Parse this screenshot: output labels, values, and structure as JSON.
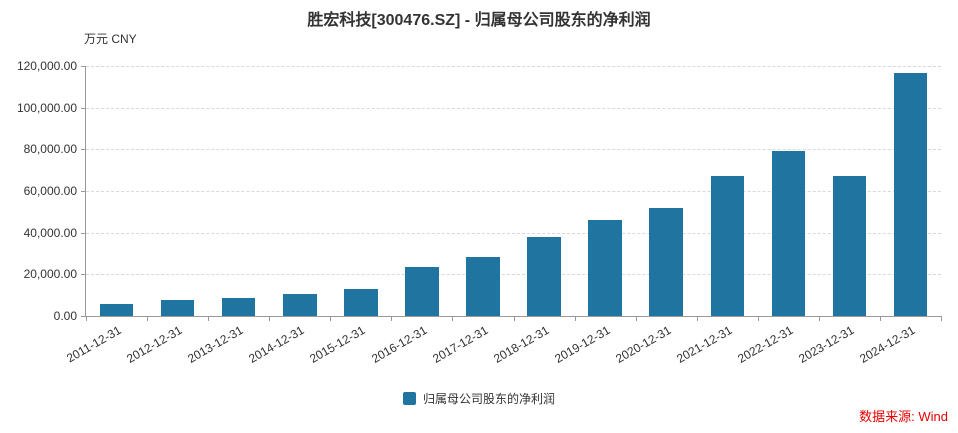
{
  "title": "胜宏科技[300476.SZ] - 归属母公司股东的净利润",
  "unit_label": "万元  CNY",
  "legend": "归属母公司股东的净利润",
  "source": "数据来源: Wind",
  "colors": {
    "bar": "#1f759f",
    "source_text": "#e60000",
    "axis": "#999999",
    "gridline": "#d9d9d9",
    "text": "#333333"
  },
  "chart_data": {
    "type": "bar",
    "title": "胜宏科技[300476.SZ] - 归属母公司股东的净利润",
    "ylabel": "万元 CNY",
    "xlabel": "",
    "categories": [
      "2011-12-31",
      "2012-12-31",
      "2013-12-31",
      "2014-12-31",
      "2015-12-31",
      "2016-12-31",
      "2017-12-31",
      "2018-12-31",
      "2019-12-31",
      "2020-12-31",
      "2021-12-31",
      "2022-12-31",
      "2023-12-31",
      "2024-12-31"
    ],
    "values": [
      6000,
      7700,
      8800,
      10400,
      13000,
      23400,
      28200,
      38000,
      46200,
      52000,
      67000,
      79000,
      67200,
      116500
    ],
    "ylim": [
      0,
      120000
    ],
    "yticks": [
      0,
      20000,
      40000,
      60000,
      80000,
      100000,
      120000
    ],
    "ytick_labels": [
      "0.00",
      "20,000.00",
      "40,000.00",
      "60,000.00",
      "80,000.00",
      "100,000.00",
      "120,000.00"
    ],
    "grid": true,
    "gridline_style": "dashed",
    "legend_position": "bottom",
    "legend_entries": [
      "归属母公司股东的净利润"
    ]
  }
}
